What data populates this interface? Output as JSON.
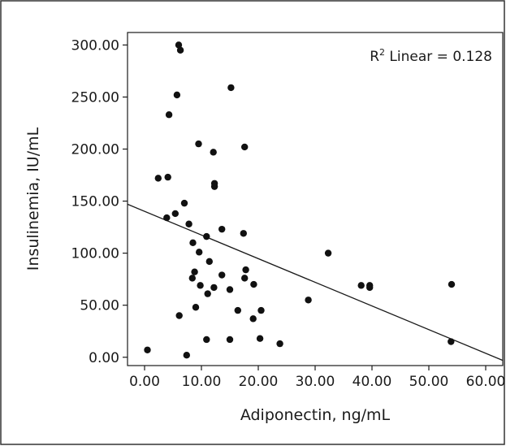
{
  "chart_data": {
    "type": "scatter",
    "xlabel": "Adiponectin, ng/mL",
    "ylabel": "Insulinemia, IU/mL",
    "xlim": [
      -3,
      63
    ],
    "ylim": [
      -8,
      312
    ],
    "xticks": [
      0,
      10,
      20,
      30,
      40,
      50,
      60
    ],
    "yticks": [
      0,
      50,
      100,
      150,
      200,
      250,
      300
    ],
    "xtick_labels": [
      "0.00",
      "10.00",
      "20.00",
      "30.00",
      "40.00",
      "50.00",
      "60.00"
    ],
    "ytick_labels": [
      "0.00",
      "50.00",
      "100.00",
      "150.00",
      "200.00",
      "250.00",
      "300.00"
    ],
    "grid": false,
    "annotation": {
      "prefix": "R",
      "superscript": "2",
      "text": " Linear = 0.128"
    },
    "fit_line": {
      "x": [
        -3,
        63
      ],
      "y": [
        147,
        -3
      ]
    },
    "points": {
      "x": [
        6.0,
        6.3,
        15.2,
        5.7,
        4.3,
        9.5,
        12.1,
        17.6,
        2.4,
        4.1,
        12.3,
        12.3,
        7.0,
        3.9,
        5.4,
        7.8,
        13.6,
        17.4,
        8.5,
        10.9,
        32.3,
        9.6,
        13.6,
        11.4,
        17.8,
        8.8,
        9.8,
        12.2,
        17.6,
        19.2,
        11.1,
        15.0,
        19.1,
        16.4,
        20.5,
        28.8,
        38.1,
        39.6,
        39.6,
        54.0,
        6.1,
        9.0,
        10.9,
        15.0,
        20.3,
        23.8,
        53.9,
        0.5,
        7.4,
        8.4
      ],
      "y": [
        300,
        295,
        259,
        252,
        233,
        205,
        197,
        202,
        172,
        173,
        167,
        164,
        148,
        134,
        138,
        128,
        123,
        119,
        110,
        116,
        100,
        101,
        79,
        92,
        84,
        82,
        69,
        67,
        76,
        70,
        61,
        65,
        37,
        45,
        45,
        55,
        69,
        67,
        69,
        70,
        40,
        48,
        17,
        17,
        18,
        13,
        15,
        7,
        2,
        76
      ]
    }
  }
}
